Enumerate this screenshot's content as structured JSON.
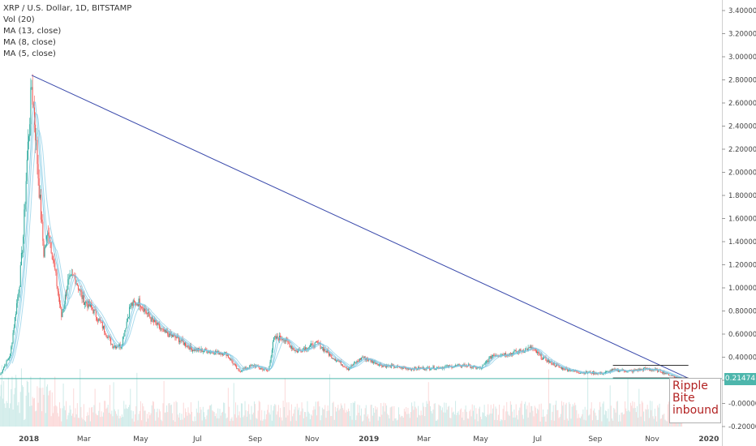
{
  "header": {
    "title": "XRP / U.S. Dollar, 1D, BITSTAMP",
    "indicators": [
      "Vol (20)",
      "MA (13, close)",
      "MA (8, close)",
      "MA (5, close)"
    ]
  },
  "annotation": [
    "Ripple",
    "Bite",
    "inbound"
  ],
  "last_price": "0.21474",
  "colors": {
    "up": "#26a69a",
    "down": "#ef5350",
    "trendline": "#3949ab",
    "ma": "#7ec8e3",
    "price_line": "#4db6ac",
    "annotation": "#b22222"
  },
  "chart_data": {
    "type": "candlestick",
    "symbol": "XRP / U.S. Dollar",
    "interval": "1D",
    "exchange": "BITSTAMP",
    "x_tick_labels": [
      "2018",
      "Mar",
      "May",
      "Jul",
      "Sep",
      "Nov",
      "2019",
      "Mar",
      "May",
      "Jul",
      "Sep",
      "Nov",
      "2020"
    ],
    "y_tick_labels": [
      "3.40000",
      "3.20000",
      "3.00000",
      "2.80000",
      "2.60000",
      "2.40000",
      "2.20000",
      "2.00000",
      "1.80000",
      "1.60000",
      "1.40000",
      "1.20000",
      "1.00000",
      "0.80000",
      "0.60000",
      "0.40000",
      "0.20000",
      "-0.00000",
      "-0.20000"
    ],
    "ylim": [
      -0.2,
      3.4
    ],
    "xlim": [
      "2017-12-01",
      "2020-01-15"
    ],
    "close_series": [
      {
        "date": "2017-12-01",
        "close": 0.25
      },
      {
        "date": "2017-12-12",
        "close": 0.42
      },
      {
        "date": "2017-12-18",
        "close": 0.8
      },
      {
        "date": "2017-12-22",
        "close": 1.05
      },
      {
        "date": "2017-12-26",
        "close": 1.45
      },
      {
        "date": "2017-12-30",
        "close": 2.1
      },
      {
        "date": "2018-01-04",
        "close": 2.75
      },
      {
        "date": "2018-01-08",
        "close": 2.35
      },
      {
        "date": "2018-01-12",
        "close": 1.85
      },
      {
        "date": "2018-01-17",
        "close": 1.3
      },
      {
        "date": "2018-01-22",
        "close": 1.5
      },
      {
        "date": "2018-01-28",
        "close": 1.2
      },
      {
        "date": "2018-02-05",
        "close": 0.75
      },
      {
        "date": "2018-02-12",
        "close": 1.05
      },
      {
        "date": "2018-02-19",
        "close": 1.1
      },
      {
        "date": "2018-02-28",
        "close": 0.9
      },
      {
        "date": "2018-03-10",
        "close": 0.82
      },
      {
        "date": "2018-03-20",
        "close": 0.68
      },
      {
        "date": "2018-04-01",
        "close": 0.5
      },
      {
        "date": "2018-04-10",
        "close": 0.5
      },
      {
        "date": "2018-04-20",
        "close": 0.85
      },
      {
        "date": "2018-04-30",
        "close": 0.88
      },
      {
        "date": "2018-05-10",
        "close": 0.75
      },
      {
        "date": "2018-05-25",
        "close": 0.62
      },
      {
        "date": "2018-06-10",
        "close": 0.56
      },
      {
        "date": "2018-06-25",
        "close": 0.47
      },
      {
        "date": "2018-07-15",
        "close": 0.45
      },
      {
        "date": "2018-08-01",
        "close": 0.43
      },
      {
        "date": "2018-08-14",
        "close": 0.28
      },
      {
        "date": "2018-08-30",
        "close": 0.33
      },
      {
        "date": "2018-09-15",
        "close": 0.28
      },
      {
        "date": "2018-09-21",
        "close": 0.56
      },
      {
        "date": "2018-09-30",
        "close": 0.57
      },
      {
        "date": "2018-10-15",
        "close": 0.45
      },
      {
        "date": "2018-11-07",
        "close": 0.52
      },
      {
        "date": "2018-11-20",
        "close": 0.42
      },
      {
        "date": "2018-12-10",
        "close": 0.3
      },
      {
        "date": "2018-12-25",
        "close": 0.4
      },
      {
        "date": "2019-01-15",
        "close": 0.33
      },
      {
        "date": "2019-02-15",
        "close": 0.3
      },
      {
        "date": "2019-03-15",
        "close": 0.31
      },
      {
        "date": "2019-04-15",
        "close": 0.33
      },
      {
        "date": "2019-05-01",
        "close": 0.3
      },
      {
        "date": "2019-05-14",
        "close": 0.42
      },
      {
        "date": "2019-06-01",
        "close": 0.43
      },
      {
        "date": "2019-06-25",
        "close": 0.48
      },
      {
        "date": "2019-07-05",
        "close": 0.4
      },
      {
        "date": "2019-07-25",
        "close": 0.31
      },
      {
        "date": "2019-08-15",
        "close": 0.27
      },
      {
        "date": "2019-09-10",
        "close": 0.26
      },
      {
        "date": "2019-09-20",
        "close": 0.29
      },
      {
        "date": "2019-10-10",
        "close": 0.28
      },
      {
        "date": "2019-10-25",
        "close": 0.3
      },
      {
        "date": "2019-11-10",
        "close": 0.28
      },
      {
        "date": "2019-11-25",
        "close": 0.23
      },
      {
        "date": "2019-12-03",
        "close": 0.21474
      }
    ],
    "drawings": {
      "trendline": {
        "from": {
          "date": "2018-01-04",
          "price": 2.84
        },
        "to": {
          "date": "2019-12-12",
          "price": 0.21
        }
      },
      "channel_top": {
        "from": {
          "date": "2019-09-20",
          "price": 0.33
        },
        "to": {
          "date": "2019-12-10",
          "price": 0.33
        }
      },
      "channel_bottom": {
        "from": {
          "date": "2019-09-20",
          "price": 0.22
        },
        "to": {
          "date": "2019-12-10",
          "price": 0.22
        }
      }
    },
    "legend": [
      "Vol (20)",
      "MA (13, close)",
      "MA (8, close)",
      "MA (5, close)"
    ],
    "grid": false
  }
}
